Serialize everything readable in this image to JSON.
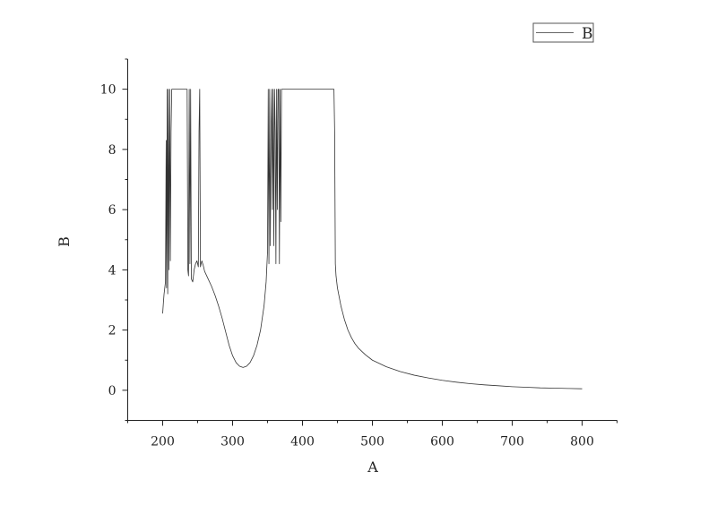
{
  "chart_data": {
    "type": "line",
    "title": "",
    "xlabel": "A",
    "ylabel": "B",
    "xlim": [
      150,
      850
    ],
    "ylim": [
      -1,
      11
    ],
    "xticks": [
      200,
      300,
      400,
      500,
      600,
      700,
      800
    ],
    "yticks": [
      0,
      2,
      4,
      6,
      8,
      10
    ],
    "grid": false,
    "legend": {
      "position": "top-right",
      "entries": [
        "B"
      ]
    },
    "series": [
      {
        "name": "B",
        "color": "#333333",
        "points": [
          [
            200,
            2.55
          ],
          [
            201,
            2.9
          ],
          [
            202,
            3.2
          ],
          [
            203,
            3.4
          ],
          [
            204,
            3.6
          ],
          [
            205,
            8.3
          ],
          [
            205.6,
            3.4
          ],
          [
            206.5,
            10.0
          ],
          [
            207.2,
            3.2
          ],
          [
            208.2,
            10.0
          ],
          [
            209,
            4.0
          ],
          [
            210,
            10.0
          ],
          [
            211,
            4.3
          ],
          [
            212,
            8.6
          ],
          [
            213,
            10.0
          ],
          [
            215,
            10.0
          ],
          [
            220,
            10.0
          ],
          [
            225,
            10.0
          ],
          [
            230,
            10.0
          ],
          [
            235,
            10.0
          ],
          [
            236,
            4.0
          ],
          [
            237,
            3.8
          ],
          [
            238,
            10.0
          ],
          [
            239,
            4.2
          ],
          [
            240,
            10.0
          ],
          [
            241,
            3.7
          ],
          [
            243,
            3.6
          ],
          [
            245,
            4.0
          ],
          [
            247,
            4.2
          ],
          [
            249,
            4.3
          ],
          [
            251,
            4.1
          ],
          [
            252,
            8.6
          ],
          [
            253,
            10.0
          ],
          [
            254,
            4.1
          ],
          [
            256,
            4.3
          ],
          [
            258,
            4.15
          ],
          [
            260,
            3.95
          ],
          [
            265,
            3.7
          ],
          [
            270,
            3.45
          ],
          [
            275,
            3.15
          ],
          [
            280,
            2.8
          ],
          [
            285,
            2.4
          ],
          [
            290,
            1.95
          ],
          [
            295,
            1.5
          ],
          [
            300,
            1.15
          ],
          [
            305,
            0.92
          ],
          [
            310,
            0.8
          ],
          [
            315,
            0.76
          ],
          [
            320,
            0.8
          ],
          [
            325,
            0.92
          ],
          [
            330,
            1.15
          ],
          [
            335,
            1.5
          ],
          [
            340,
            2.0
          ],
          [
            345,
            2.8
          ],
          [
            348,
            3.6
          ],
          [
            350,
            4.6
          ],
          [
            351,
            10.0
          ],
          [
            352,
            4.2
          ],
          [
            353,
            10.0
          ],
          [
            354,
            4.8
          ],
          [
            355,
            8.6
          ],
          [
            356,
            10.0
          ],
          [
            357,
            6.0
          ],
          [
            358,
            10.0
          ],
          [
            359,
            4.8
          ],
          [
            360,
            10.0
          ],
          [
            361,
            8.6
          ],
          [
            362,
            4.2
          ],
          [
            363,
            10.0
          ],
          [
            364,
            6.0
          ],
          [
            365,
            10.0
          ],
          [
            366,
            10.0
          ],
          [
            367,
            4.2
          ],
          [
            368,
            10.0
          ],
          [
            369,
            5.6
          ],
          [
            370,
            10.0
          ],
          [
            380,
            10.0
          ],
          [
            400,
            10.0
          ],
          [
            420,
            10.0
          ],
          [
            440,
            10.0
          ],
          [
            445,
            10.0
          ],
          [
            446,
            8.6
          ],
          [
            447,
            4.2
          ],
          [
            448,
            3.8
          ],
          [
            450,
            3.4
          ],
          [
            455,
            2.8
          ],
          [
            460,
            2.35
          ],
          [
            465,
            2.0
          ],
          [
            470,
            1.75
          ],
          [
            475,
            1.55
          ],
          [
            480,
            1.4
          ],
          [
            490,
            1.18
          ],
          [
            500,
            1.0
          ],
          [
            520,
            0.78
          ],
          [
            540,
            0.62
          ],
          [
            560,
            0.5
          ],
          [
            580,
            0.41
          ],
          [
            600,
            0.33
          ],
          [
            620,
            0.27
          ],
          [
            640,
            0.22
          ],
          [
            660,
            0.18
          ],
          [
            680,
            0.15
          ],
          [
            700,
            0.12
          ],
          [
            720,
            0.1
          ],
          [
            740,
            0.08
          ],
          [
            760,
            0.07
          ],
          [
            780,
            0.06
          ],
          [
            800,
            0.05
          ]
        ]
      }
    ]
  }
}
